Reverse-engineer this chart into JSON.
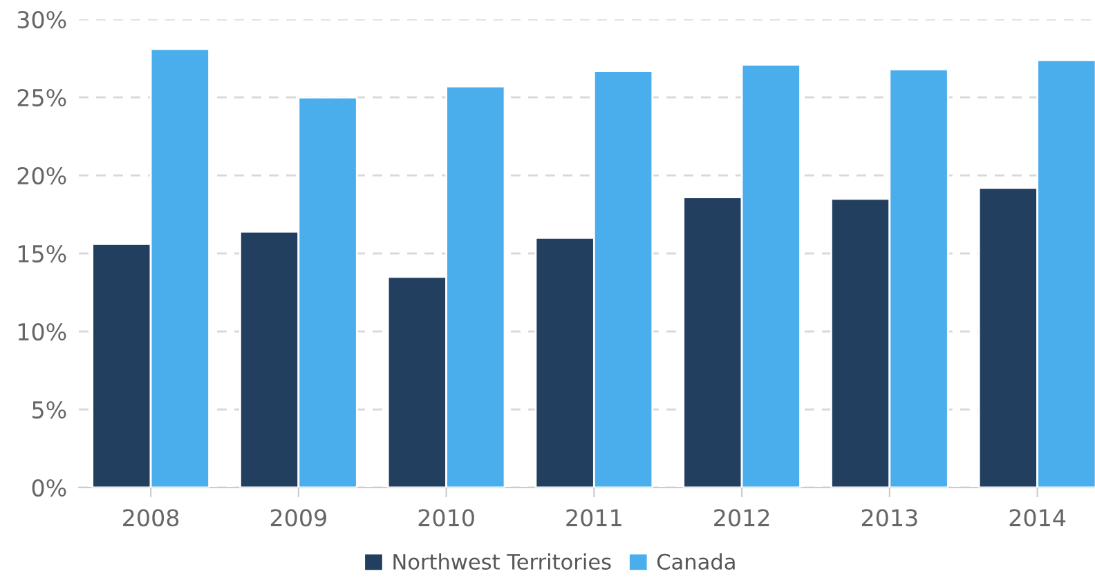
{
  "chart_data": {
    "type": "bar",
    "categories": [
      "2008",
      "2009",
      "2010",
      "2011",
      "2012",
      "2013",
      "2014"
    ],
    "series": [
      {
        "name": "Northwest Territories",
        "color": "#223f5f",
        "values": [
          15.6,
          16.4,
          13.5,
          16.0,
          18.6,
          18.5,
          19.2
        ]
      },
      {
        "name": "Canada",
        "color": "#4aaeec",
        "values": [
          28.1,
          25.0,
          25.7,
          26.7,
          27.1,
          26.8,
          27.4
        ]
      }
    ],
    "ylim": [
      0,
      30
    ],
    "yticks": [
      {
        "value": 0,
        "label": "0%"
      },
      {
        "value": 5,
        "label": "5%"
      },
      {
        "value": 10,
        "label": "10%"
      },
      {
        "value": 15,
        "label": "15%"
      },
      {
        "value": 20,
        "label": "20%"
      },
      {
        "value": 25,
        "label": "25%"
      },
      {
        "value": 30,
        "label": "30%"
      }
    ],
    "grid": "y",
    "legend": "bottom"
  }
}
